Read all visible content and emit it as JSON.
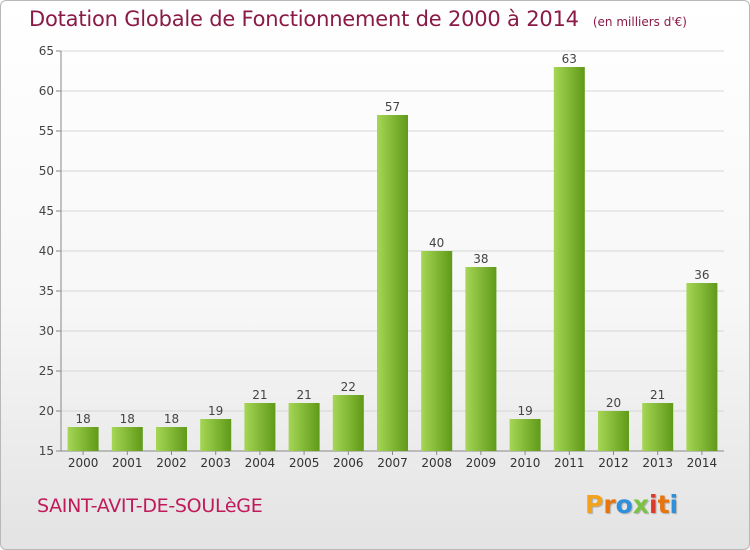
{
  "header": {
    "title": "Dotation Globale de Fonctionnement de 2000 à 2014",
    "unit": "(en milliers d'€)"
  },
  "footer": {
    "commune": "SAINT-AVIT-DE-SOULèGE",
    "logo_text": "Proxiti"
  },
  "colors": {
    "bar_light": "#a6d655",
    "bar_dark": "#5f9a18",
    "title": "#8a1a46",
    "commune": "#c11a5a"
  },
  "chart_data": {
    "type": "bar",
    "title": "Dotation Globale de Fonctionnement de 2000 à 2014",
    "subtitle": "(en milliers d'€)",
    "xlabel": "",
    "ylabel": "",
    "categories": [
      "2000",
      "2001",
      "2002",
      "2003",
      "2004",
      "2005",
      "2006",
      "2007",
      "2008",
      "2009",
      "2010",
      "2011",
      "2012",
      "2013",
      "2014"
    ],
    "values": [
      18,
      18,
      18,
      19,
      21,
      21,
      22,
      57,
      40,
      38,
      19,
      63,
      20,
      21,
      36
    ],
    "ylim": [
      15,
      65
    ],
    "yticks": [
      15,
      20,
      25,
      30,
      35,
      40,
      45,
      50,
      55,
      60,
      65
    ],
    "grid": true,
    "data_labels": true
  }
}
